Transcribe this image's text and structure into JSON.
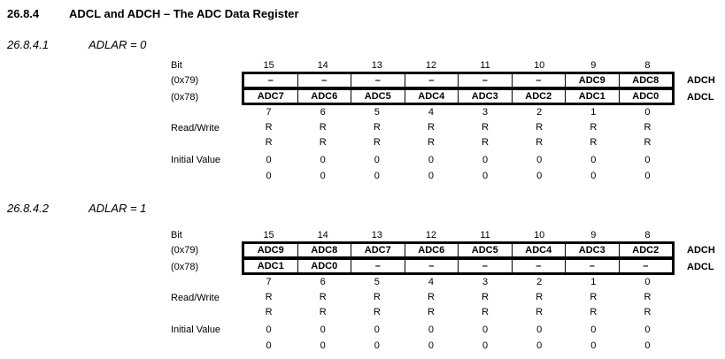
{
  "page": {
    "heading_number": "26.8.4",
    "heading_title": "ADCL and ADCH – The ADC Data Register"
  },
  "labels": {
    "bit": "Bit",
    "addr_high": "(0x79)",
    "addr_low": "(0x78)",
    "read_write": "Read/Write",
    "initial_value": "Initial Value",
    "reg_high": "ADCH",
    "reg_low": "ADCL"
  },
  "sections": [
    {
      "number": "26.8.4.1",
      "title": "ADLAR = 0",
      "bits_high": [
        "15",
        "14",
        "13",
        "12",
        "11",
        "10",
        "9",
        "8"
      ],
      "bits_low": [
        "7",
        "6",
        "5",
        "4",
        "3",
        "2",
        "1",
        "0"
      ],
      "adch_cells": [
        "–",
        "–",
        "–",
        "–",
        "–",
        "–",
        "ADC9",
        "ADC8"
      ],
      "adcl_cells": [
        "ADC7",
        "ADC6",
        "ADC5",
        "ADC4",
        "ADC3",
        "ADC2",
        "ADC1",
        "ADC0"
      ],
      "read_write_1": [
        "R",
        "R",
        "R",
        "R",
        "R",
        "R",
        "R",
        "R"
      ],
      "read_write_2": [
        "R",
        "R",
        "R",
        "R",
        "R",
        "R",
        "R",
        "R"
      ],
      "initial_1": [
        "0",
        "0",
        "0",
        "0",
        "0",
        "0",
        "0",
        "0"
      ],
      "initial_2": [
        "0",
        "0",
        "0",
        "0",
        "0",
        "0",
        "0",
        "0"
      ]
    },
    {
      "number": "26.8.4.2",
      "title": "ADLAR = 1",
      "bits_high": [
        "15",
        "14",
        "13",
        "12",
        "11",
        "10",
        "9",
        "8"
      ],
      "bits_low": [
        "7",
        "6",
        "5",
        "4",
        "3",
        "2",
        "1",
        "0"
      ],
      "adch_cells": [
        "ADC9",
        "ADC8",
        "ADC7",
        "ADC6",
        "ADC5",
        "ADC4",
        "ADC3",
        "ADC2"
      ],
      "adcl_cells": [
        "ADC1",
        "ADC0",
        "–",
        "–",
        "–",
        "–",
        "–",
        "–"
      ],
      "read_write_1": [
        "R",
        "R",
        "R",
        "R",
        "R",
        "R",
        "R",
        "R"
      ],
      "read_write_2": [
        "R",
        "R",
        "R",
        "R",
        "R",
        "R",
        "R",
        "R"
      ],
      "initial_1": [
        "0",
        "0",
        "0",
        "0",
        "0",
        "0",
        "0",
        "0"
      ],
      "initial_2": [
        "0",
        "0",
        "0",
        "0",
        "0",
        "0",
        "0",
        "0"
      ]
    }
  ]
}
